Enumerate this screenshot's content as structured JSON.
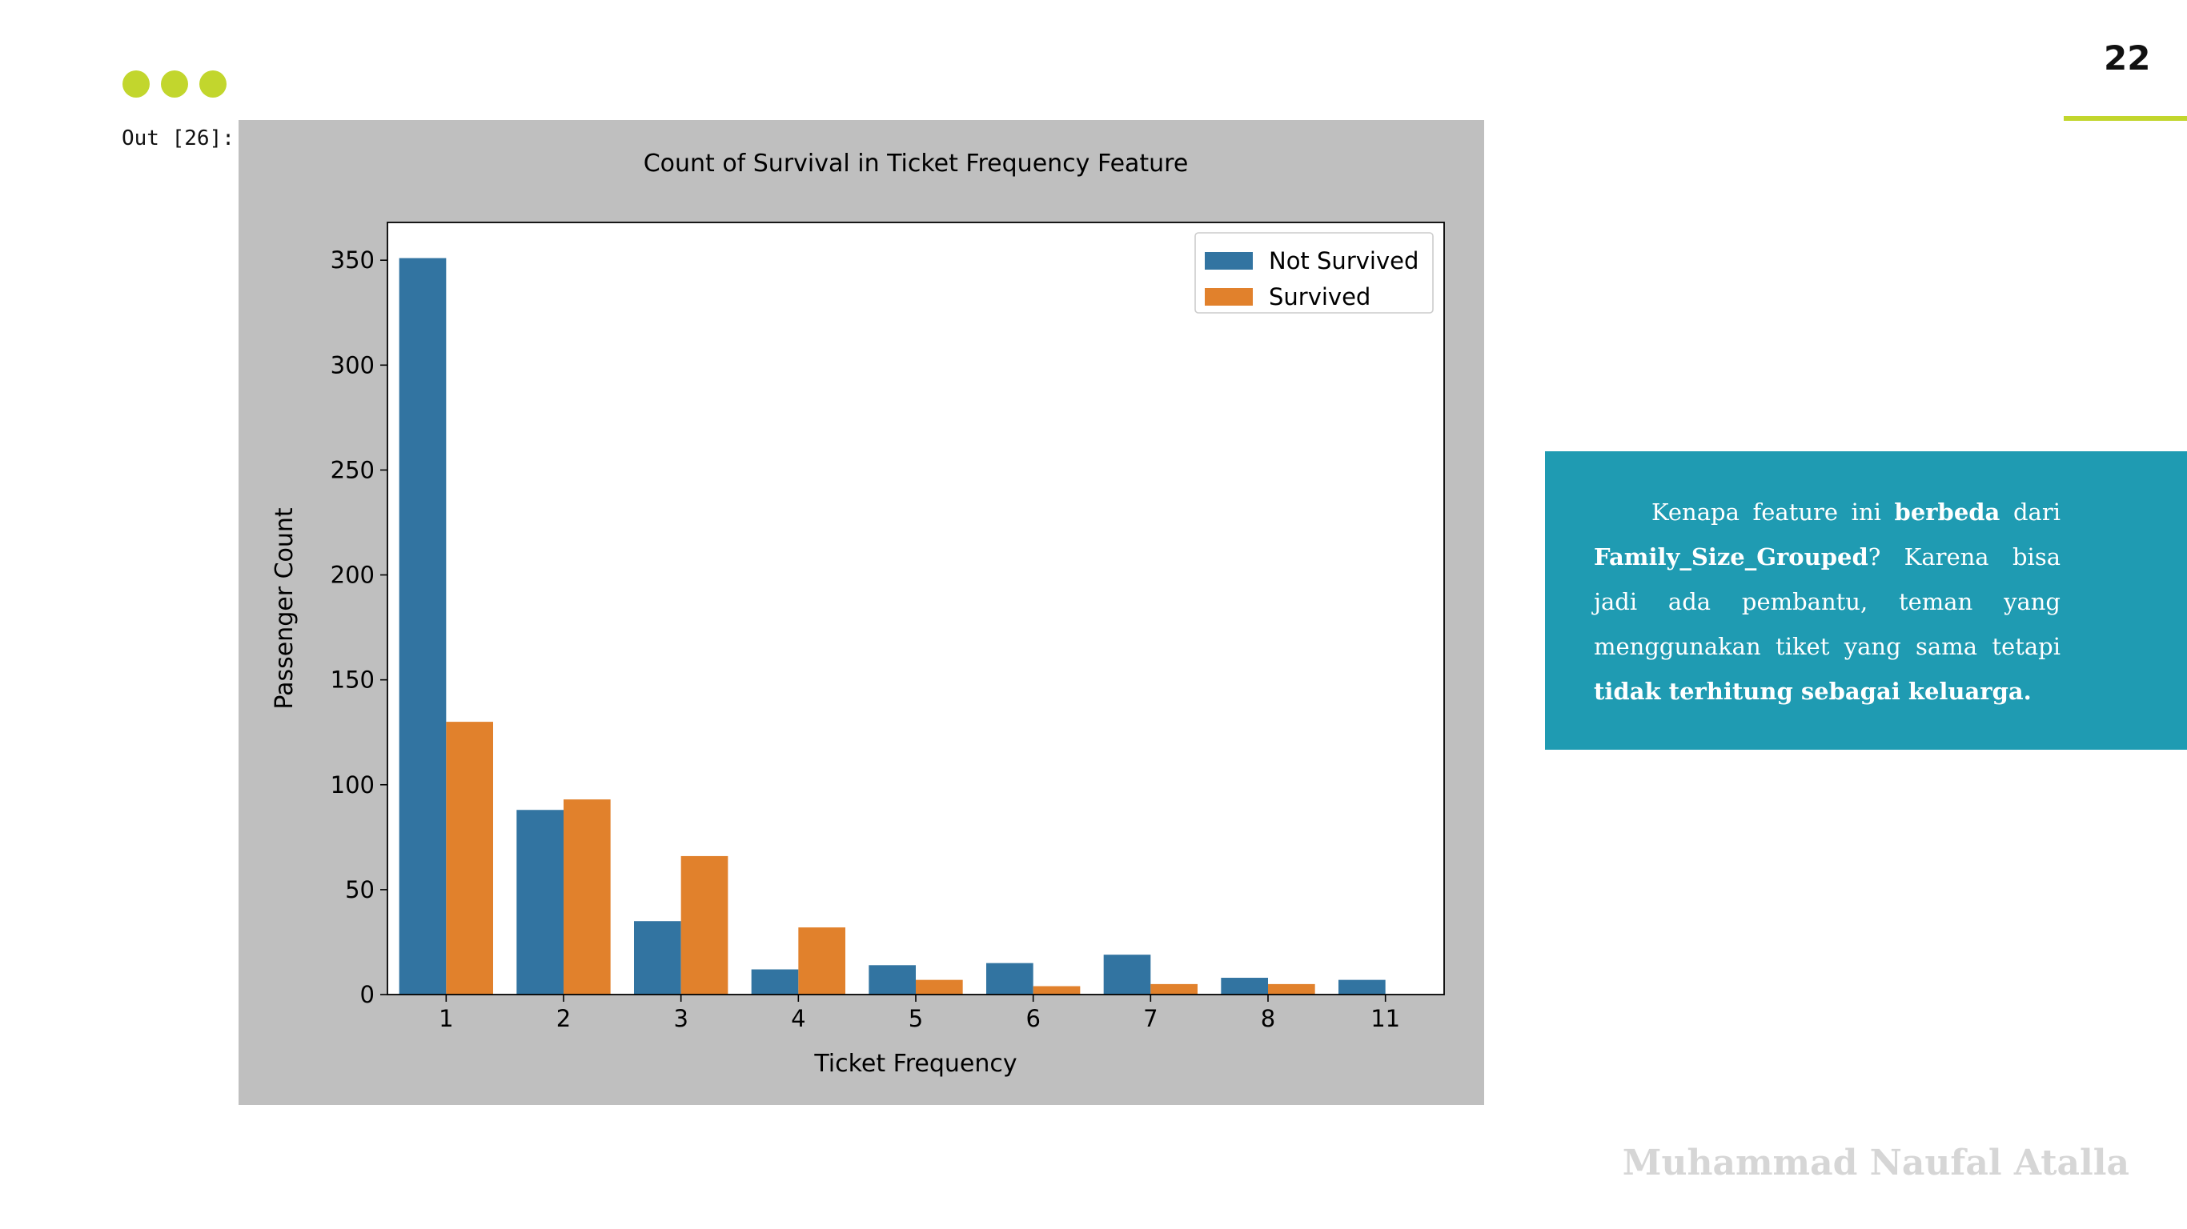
{
  "slide": {
    "page_number": "22",
    "output_label": "Out [26]:",
    "author": "Muhammad Naufal Atalla",
    "accent_color": "#c2d62d"
  },
  "note": {
    "color": "#1f9bb2",
    "segments": [
      {
        "text": "Kenapa feature ini ",
        "bold": false
      },
      {
        "text": "berbeda",
        "bold": true
      },
      {
        "text": " dari ",
        "bold": false
      },
      {
        "text": "Family_Size_Grouped",
        "bold": true
      },
      {
        "text": "? Karena bisa jadi ada pembantu, teman yang menggunakan tiket yang sama tetapi ",
        "bold": false
      },
      {
        "text": "tidak terhitung sebagai keluarga.",
        "bold": true
      }
    ]
  },
  "chart_data": {
    "type": "bar",
    "title": "Count of Survival in Ticket Frequency Feature",
    "xlabel": "Ticket Frequency",
    "ylabel": "Passenger Count",
    "categories": [
      "1",
      "2",
      "3",
      "4",
      "5",
      "6",
      "7",
      "8",
      "11"
    ],
    "series": [
      {
        "name": "Not Survived",
        "color": "#3274a1",
        "values": [
          351,
          88,
          35,
          12,
          14,
          15,
          19,
          8,
          7
        ]
      },
      {
        "name": "Survived",
        "color": "#e1812c",
        "values": [
          130,
          93,
          66,
          32,
          7,
          4,
          5,
          5,
          0
        ]
      }
    ],
    "yticks": [
      0,
      50,
      100,
      150,
      200,
      250,
      300,
      350
    ],
    "ylim": [
      0,
      368
    ],
    "grid": false,
    "legend": "top-right",
    "background": "#bfbfbf"
  }
}
